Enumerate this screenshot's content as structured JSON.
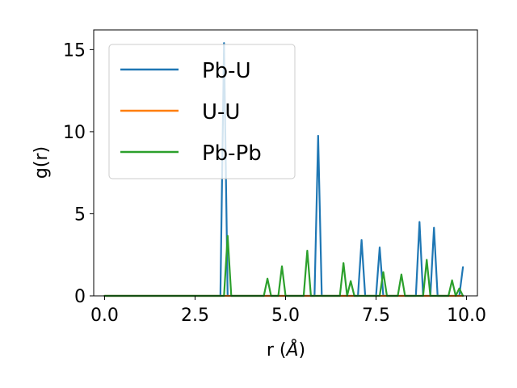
{
  "chart_data": {
    "type": "line",
    "xlabel_prefix": "r (",
    "xlabel_symbol": "Å",
    "xlabel_suffix": ")",
    "ylabel": "g(r)",
    "xlim": [
      -0.3,
      10.3
    ],
    "ylim": [
      0,
      16.2
    ],
    "xticks": [
      0.0,
      2.5,
      5.0,
      7.5,
      10.0
    ],
    "xtick_labels": [
      "0.0",
      "2.5",
      "5.0",
      "7.5",
      "10.0"
    ],
    "yticks": [
      0,
      5,
      10,
      15
    ],
    "ytick_labels": [
      "0",
      "5",
      "10",
      "15"
    ],
    "grid": false,
    "legend_position": "top-left",
    "series": [
      {
        "name": "Pb-U",
        "color": "#1f77b4",
        "x": [
          0.0,
          3.2,
          3.3,
          3.4,
          5.8,
          5.9,
          6.0,
          7.0,
          7.1,
          7.2,
          7.5,
          7.6,
          7.7,
          8.6,
          8.7,
          8.8,
          9.0,
          9.1,
          9.2,
          9.8,
          9.9
        ],
        "y": [
          0,
          0,
          15.4,
          0,
          0,
          9.75,
          0,
          0,
          3.4,
          0,
          0,
          2.95,
          0,
          0,
          4.5,
          0,
          0,
          4.15,
          0,
          0,
          1.75
        ]
      },
      {
        "name": "U-U",
        "color": "#ff7f0e",
        "x": [
          0.0,
          9.9
        ],
        "y": [
          0,
          0
        ]
      },
      {
        "name": "Pb-Pb",
        "color": "#2ca02c",
        "x": [
          0.0,
          3.3,
          3.4,
          3.5,
          4.4,
          4.5,
          4.6,
          4.8,
          4.9,
          5.0,
          5.5,
          5.6,
          5.7,
          6.5,
          6.6,
          6.7,
          6.8,
          6.9,
          7.0,
          7.6,
          7.7,
          7.8,
          8.1,
          8.2,
          8.3,
          8.8,
          8.9,
          9.0,
          9.5,
          9.6,
          9.7,
          9.8,
          9.9
        ],
        "y": [
          0,
          0,
          3.65,
          0,
          0,
          1.05,
          0,
          0,
          1.8,
          0,
          0,
          2.75,
          0,
          0,
          2.0,
          0,
          0.9,
          0,
          0,
          0,
          1.45,
          0,
          0,
          1.3,
          0,
          0,
          2.2,
          0,
          0,
          0.95,
          0,
          0.45,
          0
        ]
      }
    ]
  }
}
